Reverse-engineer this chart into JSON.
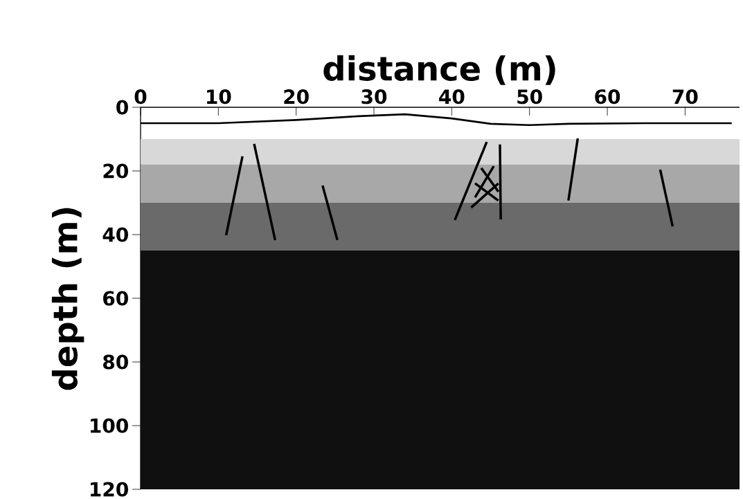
{
  "chart_data": {
    "type": "line",
    "xlabel": "distance (m)",
    "ylabel": "depth (m)",
    "xlim": [
      0,
      77
    ],
    "ylim": [
      120,
      0
    ],
    "xticks": [
      0,
      10,
      20,
      30,
      40,
      50,
      60,
      70
    ],
    "yticks": [
      0,
      20,
      40,
      60,
      80,
      100,
      120
    ],
    "bands": [
      {
        "axis": "y",
        "from": 10,
        "to": 18,
        "color": "#d8d8d8"
      },
      {
        "axis": "y",
        "from": 18,
        "to": 30,
        "color": "#a8a8a8"
      },
      {
        "axis": "y",
        "from": 30,
        "to": 45,
        "color": "#6a6a6a"
      },
      {
        "axis": "y",
        "from": 45,
        "to": 120,
        "color": "#101010"
      }
    ],
    "series": [
      {
        "color": "#000000",
        "x": [
          0,
          10,
          20,
          28,
          34,
          40,
          45,
          50,
          55,
          65,
          76
        ],
        "values": [
          5,
          5,
          4,
          2.8,
          2.2,
          3.5,
          5.2,
          5.6,
          5.2,
          5,
          5
        ]
      },
      {
        "color": "#000000",
        "x": [
          13.1,
          11.0
        ],
        "values": [
          15.4,
          40.2
        ]
      },
      {
        "color": "#000000",
        "x": [
          14.6,
          17.3
        ],
        "values": [
          11.5,
          41.7
        ]
      },
      {
        "color": "#000000",
        "x": [
          23.4,
          25.3
        ],
        "values": [
          24.6,
          41.7
        ]
      },
      {
        "color": "#000000",
        "x": [
          44.5,
          40.4
        ],
        "values": [
          10.9,
          35.4
        ]
      },
      {
        "color": "#000000",
        "x": [
          46.2,
          46.3
        ],
        "values": [
          11.7,
          35.2
        ]
      },
      {
        "color": "#000000",
        "x": [
          56.2,
          55.0
        ],
        "values": [
          9.8,
          29.3
        ]
      },
      {
        "color": "#000000",
        "x": [
          66.8,
          68.4
        ],
        "values": [
          19.6,
          37.4
        ]
      },
      {
        "color": "#000000",
        "x": [
          43.8,
          46.0
        ],
        "values": [
          19.1,
          26.5
        ]
      },
      {
        "color": "#000000",
        "x": [
          45.4,
          43.0
        ],
        "values": [
          18.5,
          28.3
        ]
      },
      {
        "color": "#000000",
        "x": [
          43.0,
          46.0
        ],
        "values": [
          23.9,
          29.3
        ]
      },
      {
        "color": "#000000",
        "x": [
          46.0,
          42.5
        ],
        "values": [
          23.9,
          31.5
        ]
      }
    ]
  }
}
